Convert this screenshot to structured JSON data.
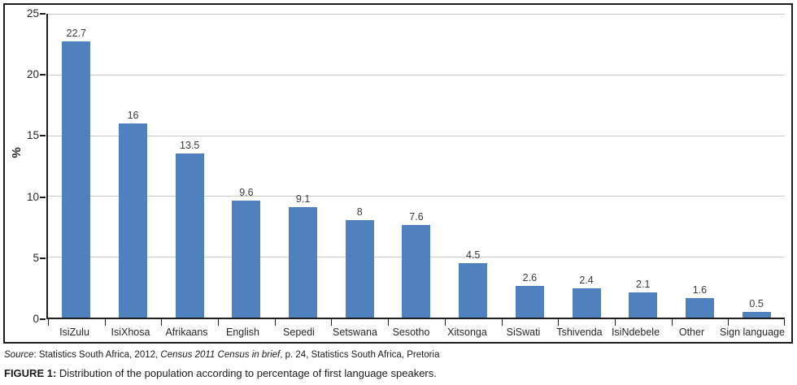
{
  "chart_data": {
    "type": "bar",
    "title": "",
    "categories": [
      "IsiZulu",
      "IsiXhosa",
      "Afrikaans",
      "English",
      "Sepedi",
      "Setswana",
      "Sesotho",
      "Xitsonga",
      "SiSwati",
      "Tshivenda",
      "IsiNdebele",
      "Other",
      "Sign language"
    ],
    "values": [
      22.7,
      16,
      13.5,
      9.6,
      9.1,
      8,
      7.6,
      4.5,
      2.6,
      2.4,
      2.1,
      1.6,
      0.5
    ],
    "value_labels": [
      "22.7",
      "16",
      "13.5",
      "9.6",
      "9.1",
      "8",
      "7.6",
      "4.5",
      "2.6",
      "2.4",
      "2.1",
      "1.6",
      "0.5"
    ],
    "xlabel": "",
    "ylabel": "%",
    "ylim": [
      0,
      25
    ],
    "yticks": [
      0,
      5,
      10,
      15,
      20,
      25
    ],
    "grid": true,
    "legend": "none",
    "bar_color": "#4e81bd",
    "grid_color": "#c8c8c8",
    "axis_color": "#1c1c1c"
  },
  "source_line": {
    "label_italic": "Source",
    "text_1": ": Statistics South Africa, 2012, ",
    "text_italic": "Census 2011 Census in brief",
    "text_2": ", p. 24, Statistics South Africa, Pretoria"
  },
  "caption": {
    "label_bold": "FIGURE 1:",
    "text": " Distribution of the population according to percentage of first language speakers."
  }
}
